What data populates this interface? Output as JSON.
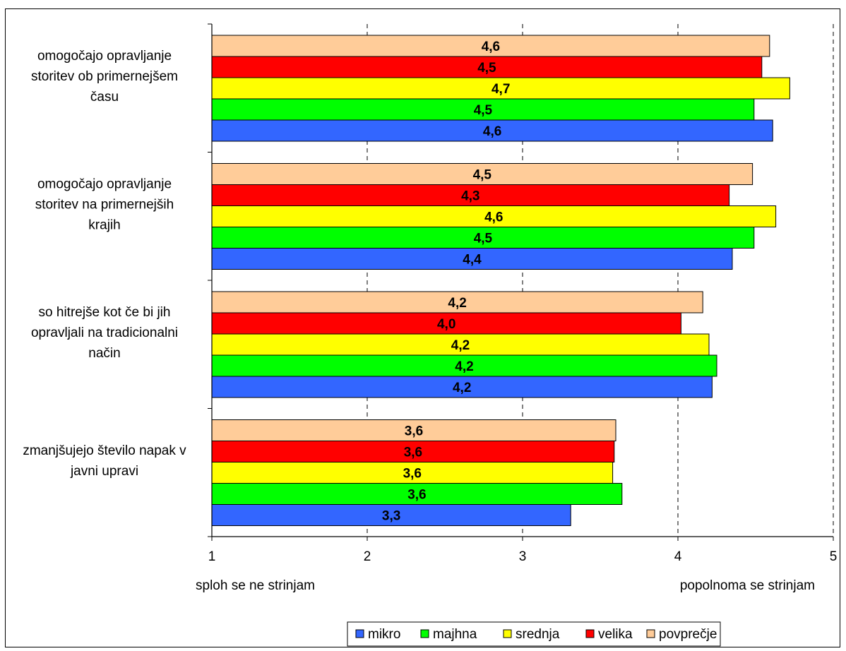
{
  "chart_data": {
    "type": "bar",
    "orientation": "horizontal",
    "categories": [
      [
        "omogočajo opravljanje",
        "storitev ob primernejšem",
        "času"
      ],
      [
        "omogočajo opravljanje",
        "storitev na primernejših",
        "krajih"
      ],
      [
        "so hitrejše kot če bi jih",
        "opravljali na tradicionalni",
        "način"
      ],
      [
        "zmanjšujejo število napak v",
        "javni upravi"
      ]
    ],
    "series": [
      {
        "name": "mikro",
        "color": "#3366ff",
        "values": [
          4.61,
          4.35,
          4.22,
          3.31
        ],
        "labels": [
          "4,6",
          "4,4",
          "4,2",
          "3,3"
        ]
      },
      {
        "name": "majhna",
        "color": "#00ff00",
        "values": [
          4.49,
          4.49,
          4.25,
          3.64
        ],
        "labels": [
          "4,5",
          "4,5",
          "4,2",
          "3,6"
        ]
      },
      {
        "name": "srednja",
        "color": "#ffff00",
        "values": [
          4.72,
          4.63,
          4.2,
          3.58
        ],
        "labels": [
          "4,7",
          "4,6",
          "4,2",
          "3,6"
        ]
      },
      {
        "name": "velika",
        "color": "#ff0000",
        "values": [
          4.54,
          4.33,
          4.02,
          3.59
        ],
        "labels": [
          "4,5",
          "4,3",
          "4,0",
          "3,6"
        ]
      },
      {
        "name": "povprečje",
        "color": "#ffcc99",
        "values": [
          4.59,
          4.48,
          4.16,
          3.6
        ],
        "labels": [
          "4,6",
          "4,5",
          "4,2",
          "3,6"
        ]
      }
    ],
    "xlim": [
      1,
      5
    ],
    "xticks": [
      "1",
      "2",
      "3",
      "4",
      "5"
    ],
    "x_min_caption": "sploh se ne strinjam",
    "x_max_caption": "popolnoma se strinjam",
    "title": "",
    "xlabel": "",
    "ylabel": "",
    "gridlines": "dashed vertical",
    "legend_position": "bottom-center",
    "axis_color": "#000000",
    "grid_color": "#000000",
    "bar_outline_color": "#000000"
  }
}
